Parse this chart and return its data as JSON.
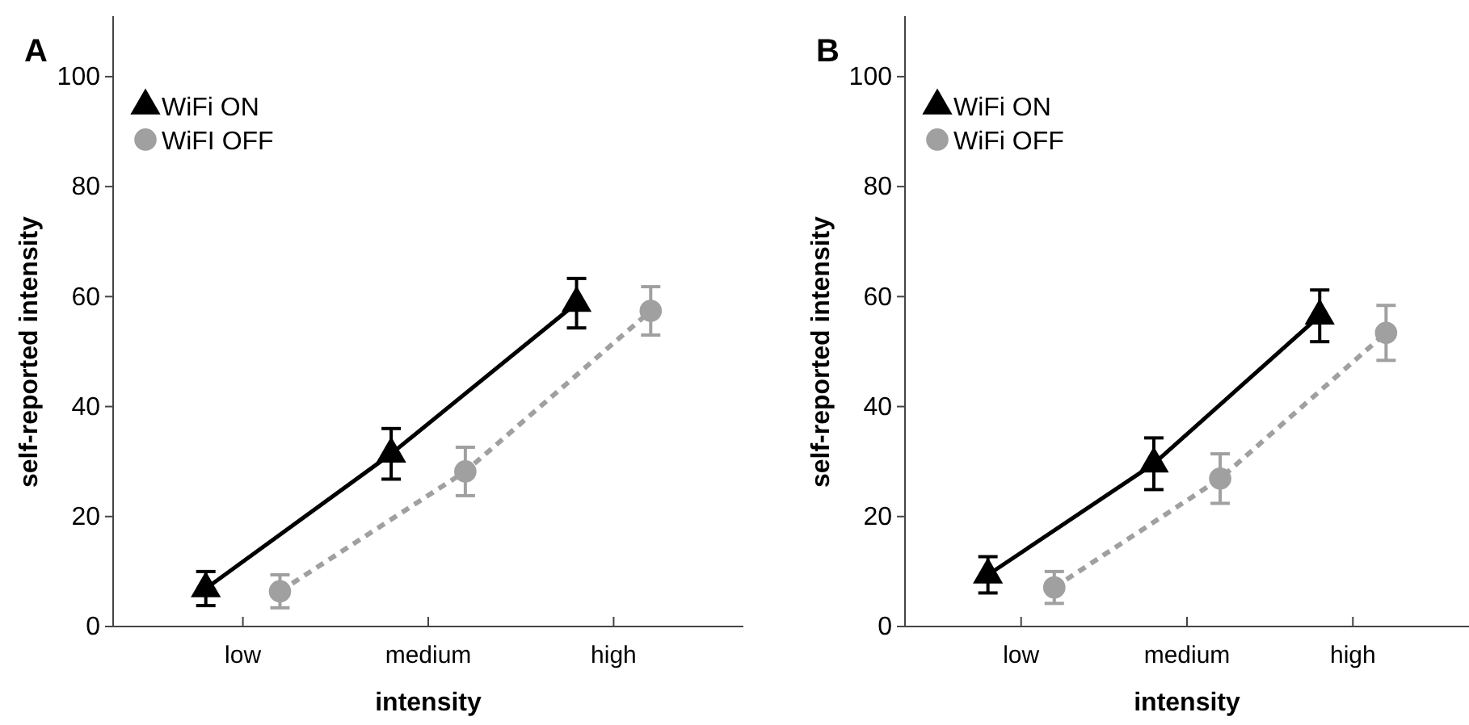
{
  "chart_data": [
    {
      "type": "line",
      "title": "A",
      "xlabel": "intensity",
      "ylabel": "self-reported intensity",
      "categories": [
        "low",
        "medium",
        "high"
      ],
      "ylim": [
        0,
        111
      ],
      "yticks": [
        0,
        20,
        40,
        60,
        80,
        100
      ],
      "legend": "top left",
      "grid": false,
      "series": [
        {
          "name": "WiFi ON",
          "color": "#000000",
          "marker": "triangle",
          "line_style": "solid",
          "values": [
            6.9,
            31.4,
            58.8
          ],
          "errors": [
            3.1,
            4.6,
            4.5
          ]
        },
        {
          "name": "WiFI OFF",
          "color": "#a0a0a0",
          "marker": "circle",
          "line_style": "dashed",
          "values": [
            6.4,
            28.2,
            57.4
          ],
          "errors": [
            3.0,
            4.4,
            4.4
          ]
        }
      ]
    },
    {
      "type": "line",
      "title": "B",
      "xlabel": "intensity",
      "ylabel": "self-reported intensity",
      "categories": [
        "low",
        "medium",
        "high"
      ],
      "ylim": [
        0,
        111
      ],
      "yticks": [
        0,
        20,
        40,
        60,
        80,
        100
      ],
      "legend": "top left",
      "grid": false,
      "series": [
        {
          "name": "WiFi ON",
          "color": "#000000",
          "marker": "triangle",
          "line_style": "solid",
          "values": [
            9.4,
            29.6,
            56.5
          ],
          "errors": [
            3.3,
            4.7,
            4.7
          ]
        },
        {
          "name": "WiFi OFF",
          "color": "#a0a0a0",
          "marker": "circle",
          "line_style": "dashed",
          "values": [
            7.1,
            26.9,
            53.4
          ],
          "errors": [
            2.9,
            4.5,
            5.0
          ]
        }
      ]
    }
  ]
}
